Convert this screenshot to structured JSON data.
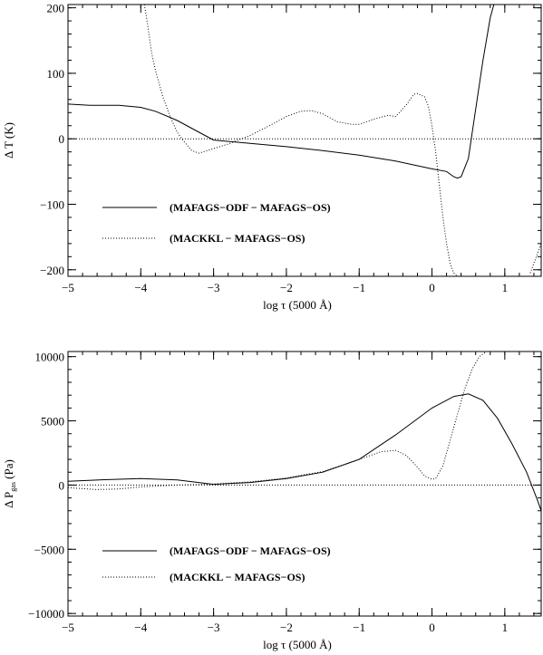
{
  "chart_data": [
    {
      "type": "line",
      "xlabel": "log τ  (5000 Å)",
      "ylabel": "Δ T (K)",
      "xlim": [
        -5,
        1.5
      ],
      "ylim": [
        -210,
        205
      ],
      "xticks": [
        -5,
        -4,
        -3,
        -2,
        -1,
        0,
        1
      ],
      "xtick_labels": [
        "−5",
        "−4",
        "−3",
        "−2",
        "−1",
        "0",
        "1"
      ],
      "yticks": [
        -200,
        -100,
        0,
        100,
        200
      ],
      "ytick_labels": [
        "−200",
        "−100",
        "0",
        "100",
        "200"
      ],
      "zero_line": true,
      "legend_position": "bottom-left",
      "series": [
        {
          "name": "(MAFAGS−ODF − MAFAGS−OS)",
          "style": "solid",
          "x": [
            -5,
            -4.7,
            -4.3,
            -4.0,
            -3.8,
            -3.5,
            -3.2,
            -3.0,
            -2.5,
            -2.0,
            -1.5,
            -1.0,
            -0.5,
            0.0,
            0.2,
            0.3,
            0.35,
            0.4,
            0.5,
            0.6,
            0.7,
            0.8,
            0.85
          ],
          "y": [
            53,
            51,
            51,
            48,
            42,
            28,
            10,
            -2,
            -7,
            -12,
            -18,
            -25,
            -34,
            -46,
            -50,
            -58,
            -60,
            -58,
            -30,
            45,
            120,
            185,
            205
          ]
        },
        {
          "name": "(MACKKL − MAFAGS−OS)",
          "style": "dotted",
          "x": [
            -3.95,
            -3.9,
            -3.85,
            -3.8,
            -3.7,
            -3.6,
            -3.5,
            -3.4,
            -3.3,
            -3.2,
            -3.0,
            -2.8,
            -2.5,
            -2.2,
            -2.0,
            -1.8,
            -1.65,
            -1.5,
            -1.3,
            -1.1,
            -1.0,
            -0.8,
            -0.6,
            -0.5,
            -0.35,
            -0.25,
            -0.2,
            -0.1,
            -0.05,
            0.0,
            0.05,
            0.1,
            0.15,
            0.2,
            0.25,
            0.3,
            0.35
          ],
          "y": [
            205,
            170,
            130,
            105,
            65,
            35,
            10,
            -5,
            -18,
            -22,
            -15,
            -8,
            5,
            22,
            34,
            42,
            43,
            38,
            26,
            22,
            22,
            30,
            36,
            34,
            52,
            68,
            69,
            64,
            50,
            20,
            -20,
            -70,
            -120,
            -160,
            -190,
            -205,
            -210
          ]
        },
        {
          "name": "",
          "style": "dotted",
          "x": [
            1.35,
            1.4,
            1.45,
            1.5
          ],
          "y": [
            -205,
            -190,
            -175,
            -160
          ]
        }
      ]
    },
    {
      "type": "line",
      "xlabel": "log τ  (5000 Å)",
      "ylabel": "Δ P",
      "ylabel_sub": "gas",
      "ylabel_suffix": " (Pa)",
      "xlim": [
        -5,
        1.5
      ],
      "ylim": [
        -10200,
        10400
      ],
      "xticks": [
        -5,
        -4,
        -3,
        -2,
        -1,
        0,
        1
      ],
      "xtick_labels": [
        "−5",
        "−4",
        "−3",
        "−2",
        "−1",
        "0",
        "1"
      ],
      "yticks": [
        -10000,
        -5000,
        0,
        5000,
        10000
      ],
      "ytick_labels": [
        "−10000",
        "−5000",
        "0",
        "5000",
        "10000"
      ],
      "zero_line": true,
      "legend_position": "bottom-left",
      "series": [
        {
          "name": "(MAFAGS−ODF − MAFAGS−OS)",
          "style": "solid",
          "x": [
            -5,
            -4.5,
            -4.0,
            -3.5,
            -3.0,
            -2.5,
            -2.0,
            -1.5,
            -1.0,
            -0.5,
            0.0,
            0.3,
            0.5,
            0.7,
            0.9,
            1.1,
            1.3,
            1.45,
            1.5
          ],
          "y": [
            300,
            420,
            500,
            400,
            60,
            200,
            500,
            1000,
            2000,
            3900,
            6000,
            6900,
            7100,
            6600,
            5200,
            3200,
            1000,
            -1200,
            -2000
          ]
        },
        {
          "name": "(MACKKL − MAFAGS−OS)",
          "style": "dotted",
          "x": [
            -5,
            -4.6,
            -4.3,
            -4.0,
            -3.5,
            -3.0,
            -2.5,
            -2.0,
            -1.5,
            -1.0,
            -0.7,
            -0.5,
            -0.35,
            -0.2,
            -0.1,
            0.0,
            0.05,
            0.15,
            0.25,
            0.35,
            0.45,
            0.55,
            0.65,
            0.75
          ],
          "y": [
            -200,
            -350,
            -300,
            -150,
            0,
            80,
            250,
            550,
            1050,
            2000,
            2600,
            2700,
            2300,
            1400,
            700,
            450,
            500,
            1500,
            3500,
            5500,
            7500,
            9000,
            10000,
            10400
          ]
        }
      ]
    }
  ]
}
